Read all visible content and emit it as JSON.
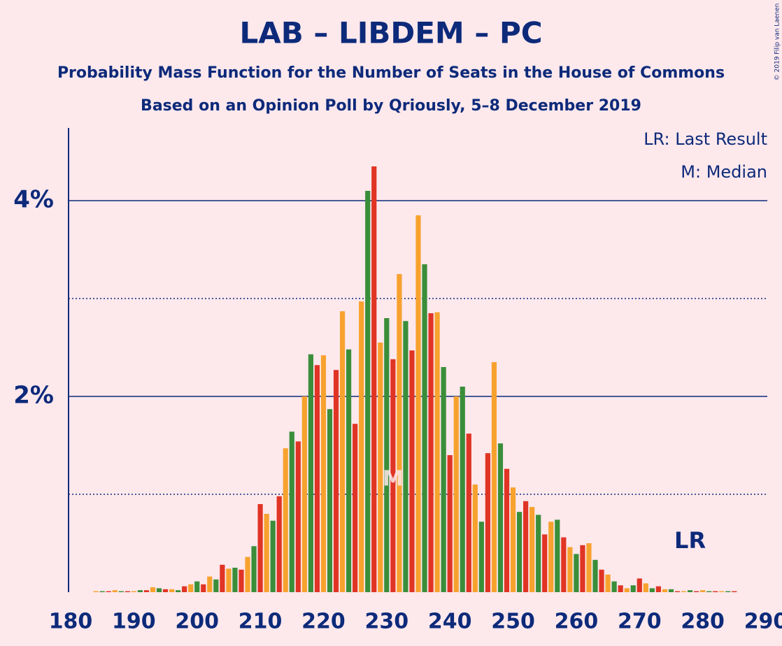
{
  "chart_data": {
    "type": "bar",
    "title": "LAB – LIBDEM – PC",
    "subtitle": "Probability Mass Function for the Number of Seats in the House of Commons",
    "subtitle2": "Based on an Opinion Poll by Qriously, 5–8 December 2019",
    "copyright": "© 2019 Filip van Laenen",
    "legend": [
      "LR: Last Result",
      "M: Median"
    ],
    "x": [
      180,
      181,
      182,
      183,
      184,
      185,
      186,
      187,
      188,
      189,
      190,
      191,
      192,
      193,
      194,
      195,
      196,
      197,
      198,
      199,
      200,
      201,
      202,
      203,
      204,
      205,
      206,
      207,
      208,
      209,
      210,
      211,
      212,
      213,
      214,
      215,
      216,
      217,
      218,
      219,
      220,
      221,
      222,
      223,
      224,
      225,
      226,
      227,
      228,
      229,
      230,
      231,
      232,
      233,
      234,
      235,
      236,
      237,
      238,
      239,
      240,
      241,
      242,
      243,
      244,
      245,
      246,
      247,
      248,
      249,
      250,
      251,
      252,
      253,
      254,
      255,
      256,
      257,
      258,
      259,
      260,
      261,
      262,
      263,
      264,
      265,
      266,
      267,
      268,
      269,
      270,
      271,
      272,
      273,
      274,
      275,
      276,
      277,
      278,
      279,
      280,
      281,
      282,
      283,
      284,
      285,
      286,
      287,
      288,
      289,
      290
    ],
    "values": [
      0,
      0,
      0,
      0,
      0.01,
      0.01,
      0.01,
      0.02,
      0.01,
      0.01,
      0.01,
      0.02,
      0.02,
      0.05,
      0.04,
      0.03,
      0.03,
      0.02,
      0.06,
      0.08,
      0.11,
      0.08,
      0.16,
      0.13,
      0.28,
      0.24,
      0.25,
      0.23,
      0.36,
      0.47,
      0.9,
      0.8,
      0.73,
      0.98,
      1.47,
      1.64,
      1.54,
      2.0,
      2.43,
      2.32,
      2.42,
      1.87,
      2.27,
      2.87,
      2.48,
      1.72,
      2.97,
      4.1,
      4.35,
      2.55,
      2.8,
      2.38,
      3.25,
      2.77,
      2.47,
      3.85,
      3.35,
      2.85,
      2.86,
      2.3,
      1.4,
      2.0,
      2.1,
      1.62,
      1.1,
      0.72,
      1.42,
      2.35,
      1.52,
      1.26,
      1.07,
      0.82,
      0.93,
      0.87,
      0.79,
      0.59,
      0.72,
      0.74,
      0.56,
      0.46,
      0.39,
      0.48,
      0.5,
      0.33,
      0.23,
      0.18,
      0.11,
      0.07,
      0.04,
      0.07,
      0.14,
      0.09,
      0.04,
      0.06,
      0.03,
      0.03,
      0.01,
      0.01,
      0.02,
      0.01,
      0.02,
      0.01,
      0.01,
      0.01,
      0.01,
      0.01,
      0,
      0,
      0,
      0,
      0
    ],
    "colors": [
      "#e03424",
      "#f7a22e",
      "#3a8e3a"
    ],
    "xlim": [
      180,
      290
    ],
    "xticks": [
      180,
      190,
      200,
      210,
      220,
      230,
      240,
      250,
      260,
      270,
      280,
      290
    ],
    "ylim": [
      0,
      4.75
    ],
    "yticks": [
      {
        "value": 2,
        "label": "2%"
      },
      {
        "value": 4,
        "label": "4%"
      }
    ],
    "minor_yticks": [
      1,
      3
    ],
    "median": {
      "x": 231,
      "label": "M"
    },
    "last_result": {
      "x": 278,
      "label": "LR"
    }
  }
}
